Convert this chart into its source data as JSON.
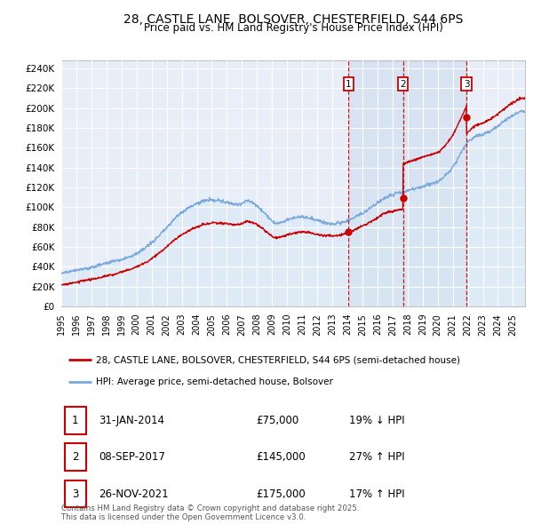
{
  "title_line1": "28, CASTLE LANE, BOLSOVER, CHESTERFIELD, S44 6PS",
  "title_line2": "Price paid vs. HM Land Registry's House Price Index (HPI)",
  "sale_color": "#cc0000",
  "hpi_color": "#7aaadd",
  "hpi_fill_color": "#d8e8f5",
  "plot_bg_color": "#e8eef8",
  "grid_color": "#ffffff",
  "shade_color": "#c8d8ee",
  "transaction_lines": [
    2014.083,
    2017.689,
    2021.906
  ],
  "transaction_line_colors": [
    "#cc0000",
    "#cc0000",
    "#cc0000"
  ],
  "transaction_labels": [
    "1",
    "2",
    "3"
  ],
  "sale_prices": [
    75000,
    145000,
    175000
  ],
  "sale_dates_str": [
    "31-JAN-2014",
    "08-SEP-2017",
    "26-NOV-2021"
  ],
  "sale_pct": [
    "19% ↓ HPI",
    "27% ↑ HPI",
    "17% ↑ HPI"
  ],
  "legend_line1": "28, CASTLE LANE, BOLSOVER, CHESTERFIELD, S44 6PS (semi-detached house)",
  "legend_line2": "HPI: Average price, semi-detached house, Bolsover",
  "footer": "Contains HM Land Registry data © Crown copyright and database right 2025.\nThis data is licensed under the Open Government Licence v3.0.",
  "yticks": [
    0,
    20000,
    40000,
    60000,
    80000,
    100000,
    120000,
    140000,
    160000,
    180000,
    200000,
    220000,
    240000
  ],
  "ytick_labels": [
    "£0",
    "£20K",
    "£40K",
    "£60K",
    "£80K",
    "£100K",
    "£120K",
    "£140K",
    "£160K",
    "£180K",
    "£200K",
    "£220K",
    "£240K"
  ],
  "xtick_years": [
    1995,
    1996,
    1997,
    1998,
    1999,
    2000,
    2001,
    2002,
    2003,
    2004,
    2005,
    2006,
    2007,
    2008,
    2009,
    2010,
    2011,
    2012,
    2013,
    2014,
    2015,
    2016,
    2017,
    2018,
    2019,
    2020,
    2021,
    2022,
    2023,
    2024,
    2025
  ],
  "xlim_start": 1995.0,
  "xlim_end": 2025.8,
  "ylim_min": 0,
  "ylim_max": 248000
}
